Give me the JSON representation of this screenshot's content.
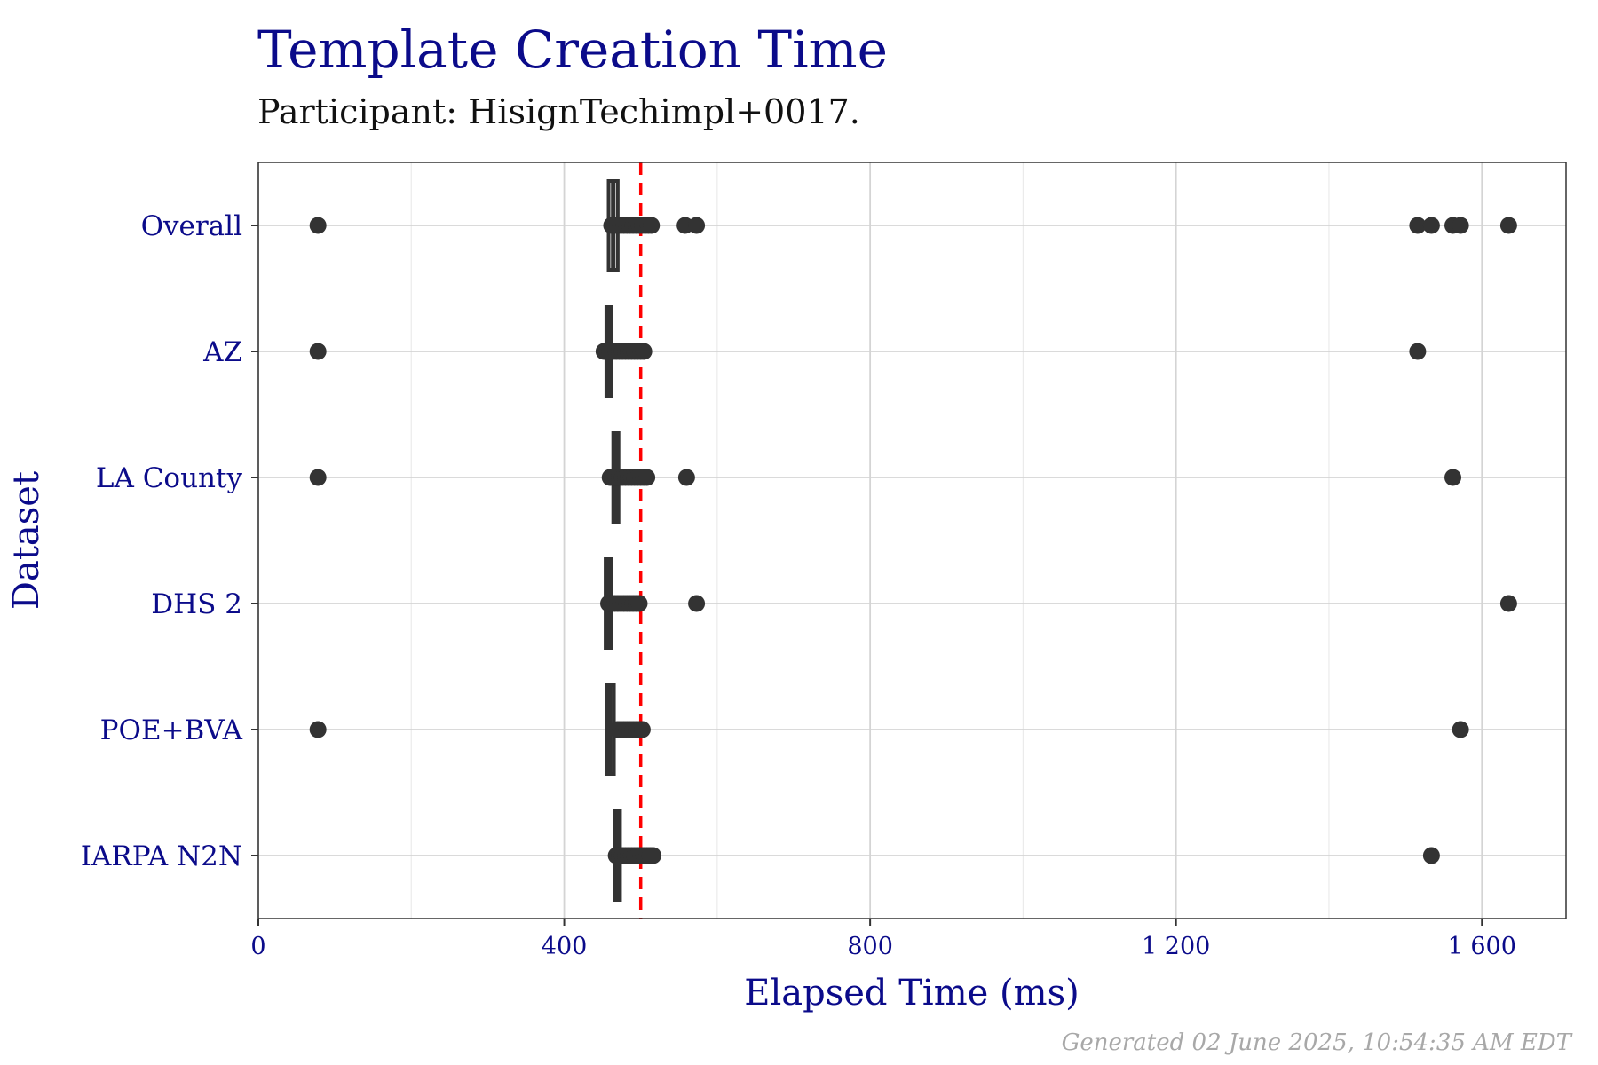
{
  "chart_data": {
    "type": "boxplot",
    "title": "Template Creation Time",
    "subtitle": "Participant: HisignTechimpl+0017.",
    "xlabel": "Elapsed Time (ms)",
    "ylabel": "Dataset",
    "xlim": [
      0,
      1710
    ],
    "x_ticks": [
      0,
      400,
      800,
      1200,
      1600
    ],
    "x_tick_labels": [
      "0",
      "400",
      "800",
      "1 200",
      "1 600"
    ],
    "grid": true,
    "reference_line": {
      "x": 500,
      "color": "#ff0000",
      "style": "dashed"
    },
    "categories": [
      "Overall",
      "AZ",
      "LA County",
      "DHS 2",
      "POE+BVA",
      "IARPA N2N"
    ],
    "series": [
      {
        "category": "Overall",
        "box_low": 458,
        "box_high": 470,
        "median": 464,
        "whisker_low": 458,
        "whisker_high": 470,
        "outliers": [
          78,
          462,
          466,
          470,
          474,
          478,
          482,
          486,
          490,
          494,
          498,
          502,
          506,
          510,
          514,
          558,
          573,
          1516,
          1534,
          1562,
          1572,
          1635
        ]
      },
      {
        "category": "AZ",
        "box_low": 455,
        "box_high": 462,
        "median": 459,
        "whisker_low": 455,
        "whisker_high": 462,
        "outliers": [
          78,
          452,
          456,
          460,
          464,
          468,
          472,
          476,
          480,
          484,
          488,
          492,
          496,
          500,
          504,
          1516
        ]
      },
      {
        "category": "LA County",
        "box_low": 464,
        "box_high": 471,
        "median": 468,
        "whisker_low": 464,
        "whisker_high": 471,
        "outliers": [
          78,
          460,
          464,
          468,
          472,
          476,
          480,
          484,
          488,
          492,
          496,
          500,
          504,
          508,
          560,
          1562
        ]
      },
      {
        "category": "DHS 2",
        "box_low": 454,
        "box_high": 461,
        "median": 457,
        "whisker_low": 454,
        "whisker_high": 461,
        "outliers": [
          458,
          462,
          466,
          470,
          474,
          478,
          482,
          486,
          490,
          494,
          498,
          573,
          1635
        ]
      },
      {
        "category": "POE+BVA",
        "box_low": 456,
        "box_high": 465,
        "median": 460,
        "whisker_low": 456,
        "whisker_high": 465,
        "outliers": [
          78,
          470,
          474,
          478,
          482,
          486,
          490,
          494,
          498,
          502,
          1572
        ]
      },
      {
        "category": "IARPA N2N",
        "box_low": 466,
        "box_high": 473,
        "median": 470,
        "whisker_low": 466,
        "whisker_high": 473,
        "outliers": [
          468,
          472,
          476,
          480,
          484,
          488,
          492,
          496,
          500,
          504,
          508,
          512,
          516,
          1534
        ]
      }
    ]
  },
  "caption": "Generated 02 June 2025, 10:54:35 AM EDT",
  "colors": {
    "title": "#0b0b8a",
    "points": "#333333",
    "reference": "#ff0000",
    "grid_major": "#d4d4d4",
    "grid_minor": "#ebebeb"
  }
}
